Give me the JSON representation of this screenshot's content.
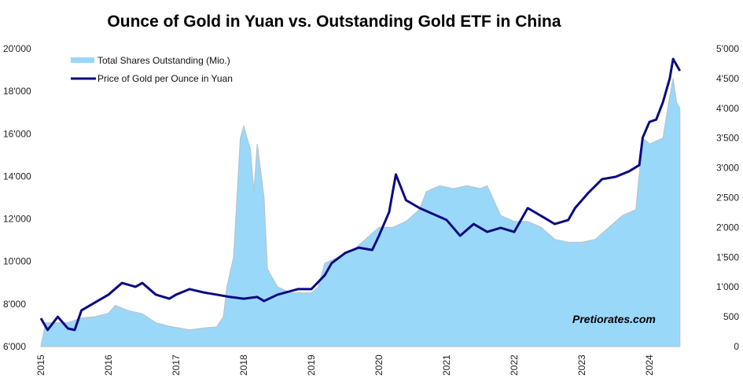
{
  "chart_data": {
    "type": "line",
    "title": "Ounce of Gold in Yuan vs. Outstanding Gold ETF in China",
    "watermark": "Pretiorates.com",
    "x_ticks": [
      "2015",
      "2016",
      "2017",
      "2018",
      "2019",
      "2020",
      "2021",
      "2022",
      "2023",
      "2024"
    ],
    "xlim": [
      2015,
      2024.5
    ],
    "left_axis": {
      "ylim": [
        6000,
        20000
      ],
      "ticks": [
        "6'000",
        "8'000",
        "10'000",
        "12'000",
        "14'000",
        "16'000",
        "18'000",
        "20'000"
      ],
      "tick_values": [
        6000,
        8000,
        10000,
        12000,
        14000,
        16000,
        18000,
        20000
      ]
    },
    "right_axis": {
      "ylim": [
        0,
        5000
      ],
      "ticks": [
        "0",
        "500",
        "1'000",
        "1'500",
        "2'000",
        "2'500",
        "3'000",
        "3'500",
        "4'000",
        "4'500",
        "5'000"
      ],
      "tick_values": [
        0,
        500,
        1000,
        1500,
        2000,
        2500,
        3000,
        3500,
        4000,
        4500,
        5000
      ]
    },
    "legend_position": "top-left",
    "series": [
      {
        "name": "Total Shares Outstanding (Mio.)",
        "type": "area",
        "axis": "right",
        "color": "#9ad8fa",
        "x": [
          2015.0,
          2015.07,
          2015.4,
          2015.6,
          2015.8,
          2016.0,
          2016.1,
          2016.3,
          2016.5,
          2016.7,
          2016.9,
          2017.0,
          2017.2,
          2017.4,
          2017.6,
          2017.7,
          2017.75,
          2017.85,
          2017.95,
          2018.0,
          2018.1,
          2018.15,
          2018.2,
          2018.3,
          2018.35,
          2018.5,
          2018.7,
          2019.0,
          2019.1,
          2019.2,
          2019.4,
          2019.6,
          2019.8,
          2020.0,
          2020.2,
          2020.4,
          2020.6,
          2020.7,
          2020.9,
          2021.1,
          2021.3,
          2021.5,
          2021.6,
          2021.8,
          2022.0,
          2022.2,
          2022.4,
          2022.6,
          2022.8,
          2023.0,
          2023.2,
          2023.4,
          2023.6,
          2023.8,
          2023.9,
          2024.0,
          2024.2,
          2024.3,
          2024.35,
          2024.4,
          2024.45
        ],
        "values": [
          0,
          400,
          400,
          480,
          500,
          560,
          690,
          600,
          550,
          400,
          340,
          320,
          280,
          310,
          330,
          500,
          1000,
          1500,
          3500,
          3700,
          3300,
          2600,
          3400,
          2500,
          1300,
          1000,
          900,
          900,
          1000,
          1400,
          1500,
          1600,
          1800,
          2000,
          2000,
          2100,
          2300,
          2600,
          2700,
          2650,
          2700,
          2650,
          2700,
          2200,
          2100,
          2100,
          2000,
          1800,
          1750,
          1750,
          1800,
          2000,
          2200,
          2300,
          3500,
          3400,
          3500,
          4200,
          4500,
          4100,
          4000
        ]
      },
      {
        "name": "Price of Gold per Ounce in Yuan",
        "type": "line",
        "axis": "left",
        "color": "#0a0a80",
        "x": [
          2015.0,
          2015.1,
          2015.25,
          2015.4,
          2015.5,
          2015.6,
          2015.8,
          2016.0,
          2016.2,
          2016.4,
          2016.5,
          2016.7,
          2016.9,
          2017.0,
          2017.2,
          2017.4,
          2017.6,
          2017.8,
          2018.0,
          2018.2,
          2018.3,
          2018.5,
          2018.8,
          2019.0,
          2019.2,
          2019.3,
          2019.5,
          2019.7,
          2019.9,
          2020.0,
          2020.15,
          2020.25,
          2020.4,
          2020.6,
          2021.0,
          2021.2,
          2021.4,
          2021.6,
          2021.8,
          2022.0,
          2022.2,
          2022.4,
          2022.6,
          2022.8,
          2022.9,
          2023.1,
          2023.3,
          2023.5,
          2023.7,
          2023.85,
          2023.9,
          2024.0,
          2024.1,
          2024.2,
          2024.3,
          2024.35,
          2024.45
        ],
        "values": [
          7330,
          6780,
          7400,
          6850,
          6780,
          7700,
          8070,
          8440,
          8990,
          8810,
          8990,
          8440,
          8250,
          8440,
          8700,
          8550,
          8440,
          8330,
          8250,
          8330,
          8140,
          8440,
          8700,
          8700,
          9360,
          9920,
          10400,
          10650,
          10540,
          11210,
          12320,
          14090,
          12880,
          12510,
          11950,
          11210,
          11760,
          11390,
          11580,
          11390,
          12510,
          12140,
          11760,
          11950,
          12510,
          13240,
          13870,
          13980,
          14240,
          14530,
          15820,
          16560,
          16670,
          17490,
          18600,
          19520,
          18960
        ]
      }
    ]
  }
}
